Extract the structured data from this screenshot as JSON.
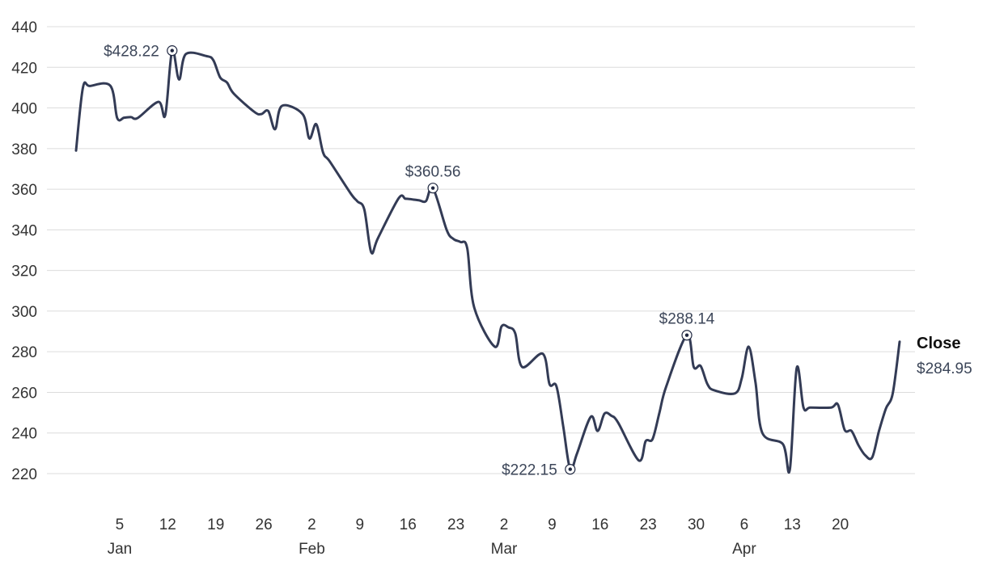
{
  "chart_data": {
    "type": "line",
    "ylim": [
      215,
      440
    ],
    "y_ticks": [
      440,
      420,
      400,
      380,
      360,
      340,
      320,
      300,
      280,
      260,
      240,
      220
    ],
    "x_range": [
      "2020-01-01",
      "2020-04-26"
    ],
    "x_ticks": [
      {
        "date": "2020-01-05",
        "label": "5",
        "month": "Jan"
      },
      {
        "date": "2020-01-12",
        "label": "12",
        "month": ""
      },
      {
        "date": "2020-01-19",
        "label": "19",
        "month": ""
      },
      {
        "date": "2020-01-26",
        "label": "26",
        "month": ""
      },
      {
        "date": "2020-02-02",
        "label": "2",
        "month": "Feb"
      },
      {
        "date": "2020-02-09",
        "label": "9",
        "month": ""
      },
      {
        "date": "2020-02-16",
        "label": "16",
        "month": ""
      },
      {
        "date": "2020-02-23",
        "label": "23",
        "month": ""
      },
      {
        "date": "2020-03-01",
        "label": "2",
        "month": "Mar"
      },
      {
        "date": "2020-03-08",
        "label": "9",
        "month": ""
      },
      {
        "date": "2020-03-15",
        "label": "16",
        "month": ""
      },
      {
        "date": "2020-03-22",
        "label": "23",
        "month": ""
      },
      {
        "date": "2020-03-29",
        "label": "30",
        "month": ""
      },
      {
        "date": "2020-04-05",
        "label": "6",
        "month": "Apr"
      },
      {
        "date": "2020-04-12",
        "label": "13",
        "month": ""
      },
      {
        "date": "2020-04-19",
        "label": "20",
        "month": ""
      }
    ],
    "grid": true,
    "line_color": "#333b55",
    "series": [
      {
        "name": "Close",
        "points": [
          [
            "2020-01-01",
            379
          ],
          [
            "2020-01-02",
            410
          ],
          [
            "2020-01-03",
            410.8
          ],
          [
            "2020-01-06",
            410.9
          ],
          [
            "2020-01-07",
            395
          ],
          [
            "2020-01-08",
            395.2
          ],
          [
            "2020-01-09",
            395.5
          ],
          [
            "2020-01-10",
            395.1
          ],
          [
            "2020-01-13",
            403
          ],
          [
            "2020-01-14",
            396.5
          ],
          [
            "2020-01-15",
            428.22
          ],
          [
            "2020-01-16",
            414
          ],
          [
            "2020-01-17",
            426.5
          ],
          [
            "2020-01-20",
            425.5
          ],
          [
            "2020-01-21",
            423.5
          ],
          [
            "2020-01-22",
            415
          ],
          [
            "2020-01-23",
            412.5
          ],
          [
            "2020-01-24",
            407
          ],
          [
            "2020-01-27",
            398
          ],
          [
            "2020-01-28",
            397
          ],
          [
            "2020-01-29",
            398.5
          ],
          [
            "2020-01-30",
            389.5
          ],
          [
            "2020-01-31",
            401
          ],
          [
            "2020-02-03",
            397
          ],
          [
            "2020-02-04",
            385
          ],
          [
            "2020-02-05",
            392
          ],
          [
            "2020-02-06",
            378
          ],
          [
            "2020-02-07",
            373.5
          ],
          [
            "2020-02-10",
            358
          ],
          [
            "2020-02-11",
            354
          ],
          [
            "2020-02-12",
            350
          ],
          [
            "2020-02-13",
            329
          ],
          [
            "2020-02-14",
            336
          ],
          [
            "2020-02-17",
            355.5
          ],
          [
            "2020-02-18",
            355.3
          ],
          [
            "2020-02-19",
            355
          ],
          [
            "2020-02-20",
            354.5
          ],
          [
            "2020-02-21",
            354.2
          ],
          [
            "2020-02-22",
            360.56
          ],
          [
            "2020-02-24",
            340
          ],
          [
            "2020-02-25",
            335.5
          ],
          [
            "2020-02-26",
            334
          ],
          [
            "2020-02-27",
            331
          ],
          [
            "2020-02-28",
            302
          ],
          [
            "2020-03-02",
            282.5
          ],
          [
            "2020-03-03",
            292.5
          ],
          [
            "2020-03-04",
            292
          ],
          [
            "2020-03-05",
            289
          ],
          [
            "2020-03-06",
            272.5
          ],
          [
            "2020-03-09",
            279
          ],
          [
            "2020-03-10",
            264
          ],
          [
            "2020-03-11",
            263
          ],
          [
            "2020-03-12",
            243
          ],
          [
            "2020-03-13",
            222.15
          ],
          [
            "2020-03-14",
            230
          ],
          [
            "2020-03-16",
            248
          ],
          [
            "2020-03-17",
            241
          ],
          [
            "2020-03-18",
            249.5
          ],
          [
            "2020-03-19",
            248.5
          ],
          [
            "2020-03-20",
            245
          ],
          [
            "2020-03-23",
            226.5
          ],
          [
            "2020-03-24",
            236
          ],
          [
            "2020-03-25",
            237
          ],
          [
            "2020-03-26",
            250
          ],
          [
            "2020-03-27",
            263
          ],
          [
            "2020-03-30",
            288.14
          ],
          [
            "2020-03-31",
            272.5
          ],
          [
            "2020-04-01",
            273
          ],
          [
            "2020-04-02",
            264
          ],
          [
            "2020-04-03",
            261
          ],
          [
            "2020-04-06",
            259.5
          ],
          [
            "2020-04-07",
            267
          ],
          [
            "2020-04-08",
            282.5
          ],
          [
            "2020-04-09",
            265
          ],
          [
            "2020-04-10",
            240
          ],
          [
            "2020-04-13",
            234.5
          ],
          [
            "2020-04-14",
            222
          ],
          [
            "2020-04-15",
            272
          ],
          [
            "2020-04-16",
            252.5
          ],
          [
            "2020-04-17",
            252.5
          ],
          [
            "2020-04-20",
            252.5
          ],
          [
            "2020-04-21",
            254
          ],
          [
            "2020-04-22",
            241.5
          ],
          [
            "2020-04-23",
            241
          ],
          [
            "2020-04-24",
            234
          ],
          [
            "2020-04-25",
            229
          ],
          [
            "2020-04-26",
            228
          ],
          [
            "2020-04-27",
            241
          ],
          [
            "2020-04-28",
            252
          ],
          [
            "2020-04-29",
            259.5
          ],
          [
            "2020-04-30",
            284.95
          ]
        ]
      }
    ],
    "annotations": [
      {
        "date": "2020-01-15",
        "value": 428.22,
        "label": "$428.22",
        "label_side": "left"
      },
      {
        "date": "2020-02-22",
        "value": 360.56,
        "label": "$360.56",
        "label_side": "top"
      },
      {
        "date": "2020-03-13",
        "value": 222.15,
        "label": "$222.15",
        "label_side": "left"
      },
      {
        "date": "2020-03-30",
        "value": 288.14,
        "label": "$288.14",
        "label_side": "top"
      }
    ],
    "end_label": {
      "title": "Close",
      "value": "$284.95"
    }
  }
}
